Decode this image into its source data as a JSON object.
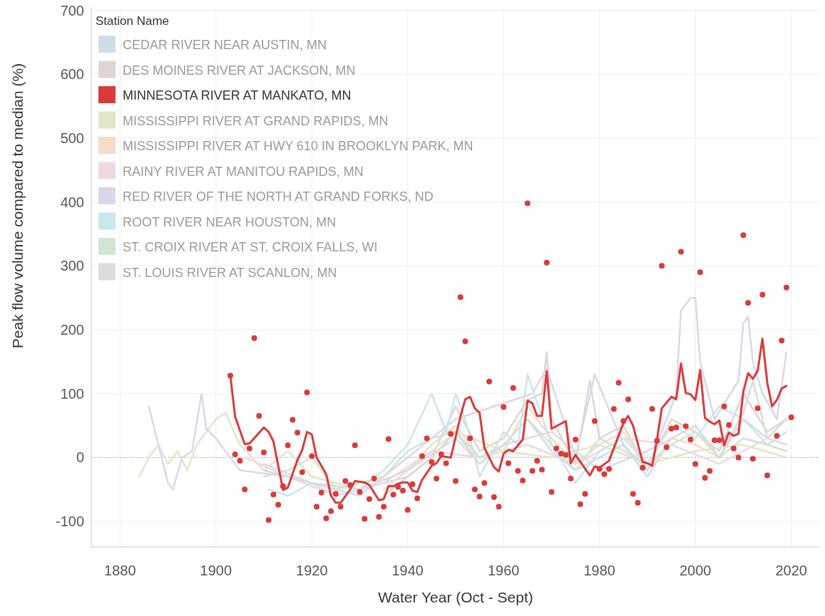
{
  "chart_data": {
    "type": "scatter",
    "xlabel": "Water Year (Oct - Sept)",
    "ylabel": "Peak flow volume compared to median (%)",
    "legend_title": "Station Name",
    "legend": "top left",
    "grid": true,
    "xlim": [
      1874,
      2026
    ],
    "ylim": [
      -140,
      705
    ],
    "xticks": [
      1880,
      1900,
      1920,
      1940,
      1960,
      1980,
      2000,
      2020
    ],
    "yticks": [
      {
        "value": -100,
        "label": "-100"
      },
      0,
      100,
      200,
      300,
      400,
      500,
      600,
      700
    ],
    "ref_lines": [
      {
        "axis": "y",
        "value": 0,
        "color": "#b0b0b0",
        "line_style": "dotted"
      }
    ],
    "series": [
      {
        "name": "CEDAR RIVER NEAR AUSTIN, MN",
        "type": "line",
        "color": "#cfdde8",
        "x": [
          1910,
          1920,
          1930,
          1940,
          1945,
          1950,
          1955,
          1960,
          1965,
          1970,
          1975,
          1980,
          1985,
          1990,
          1995,
          2000,
          2005,
          2010,
          2015,
          2019
        ],
        "values": [
          -20,
          -40,
          -50,
          -30,
          0,
          40,
          -10,
          20,
          60,
          10,
          -20,
          0,
          20,
          -30,
          30,
          50,
          0,
          60,
          30,
          20
        ]
      },
      {
        "name": "DES MOINES RIVER AT JACKSON, MN",
        "type": "line",
        "color": "#ddd6d3",
        "x": [
          1935,
          1940,
          1945,
          1950,
          1955,
          1960,
          1965,
          1968,
          1969,
          1970,
          1975,
          1978,
          1980,
          1985,
          1990,
          1995,
          2000,
          2005,
          2010,
          2015,
          2019
        ],
        "values": [
          -60,
          -30,
          0,
          80,
          10,
          30,
          90,
          100,
          165,
          60,
          -10,
          120,
          30,
          50,
          -20,
          60,
          40,
          10,
          100,
          40,
          60
        ]
      },
      {
        "name": "MINNESOTA RIVER AT MANKATO, MN",
        "marker": "circle",
        "color": "#d93b3b",
        "x": [
          1903,
          1904,
          1905,
          1906,
          1907,
          1908,
          1909,
          1910,
          1911,
          1912,
          1913,
          1914,
          1915,
          1916,
          1917,
          1918,
          1919,
          1920,
          1921,
          1922,
          1923,
          1924,
          1925,
          1926,
          1927,
          1928,
          1929,
          1930,
          1931,
          1932,
          1933,
          1934,
          1935,
          1936,
          1937,
          1938,
          1939,
          1940,
          1941,
          1942,
          1943,
          1944,
          1945,
          1946,
          1947,
          1948,
          1949,
          1950,
          1951,
          1952,
          1953,
          1954,
          1955,
          1956,
          1957,
          1958,
          1959,
          1960,
          1961,
          1962,
          1963,
          1964,
          1965,
          1966,
          1967,
          1968,
          1969,
          1970,
          1971,
          1972,
          1973,
          1974,
          1975,
          1976,
          1977,
          1979,
          1980,
          1981,
          1982,
          1983,
          1984,
          1985,
          1986,
          1987,
          1988,
          1989,
          1991,
          1992,
          1993,
          1994,
          1995,
          1996,
          1997,
          1998,
          1999,
          2000,
          2001,
          2002,
          2003,
          2004,
          2005,
          2006,
          2007,
          2008,
          2009,
          2010,
          2011,
          2012,
          2013,
          2014,
          2015,
          2017,
          2018,
          2019,
          2020
        ],
        "values": [
          128,
          5,
          -5,
          -50,
          14,
          187,
          65,
          8,
          -98,
          -58,
          -74,
          -45,
          19,
          59,
          39,
          -23,
          102,
          2,
          -77,
          -55,
          -95,
          -84,
          -57,
          -77,
          -37,
          -43,
          19,
          -54,
          -96,
          -65,
          -33,
          -93,
          -77,
          29,
          -58,
          -46,
          -52,
          -82,
          -42,
          -64,
          2,
          30,
          -7,
          -33,
          5,
          -9,
          37,
          -37,
          251,
          182,
          30,
          -50,
          -61,
          -40,
          119,
          -62,
          -77,
          79,
          -9,
          109,
          -21,
          -36,
          398,
          -21,
          -5,
          -19,
          305,
          -54,
          14,
          6,
          4,
          -33,
          28,
          -73,
          -57,
          57,
          -18,
          -26,
          -18,
          76,
          117,
          57,
          91,
          -57,
          -71,
          -16,
          76,
          26,
          300,
          16,
          45,
          47,
          322,
          49,
          28,
          -10,
          290,
          -32,
          -21,
          27,
          27,
          80,
          51,
          14,
          0,
          348,
          242,
          -2,
          77,
          255,
          -28,
          34,
          183,
          266,
          63
        ]
      },
      {
        "type": "line",
        "color": "#d93b3b",
        "x": [
          1903,
          1904,
          1906,
          1907,
          1910,
          1911,
          1912,
          1914,
          1915,
          1917,
          1918,
          1919,
          1920,
          1921,
          1923,
          1924,
          1925,
          1926,
          1928,
          1929,
          1931,
          1932,
          1934,
          1935,
          1936,
          1937,
          1938,
          1939,
          1940,
          1941,
          1942,
          1943,
          1945,
          1946,
          1947,
          1948,
          1949,
          1951,
          1952,
          1953,
          1954,
          1955,
          1956,
          1958,
          1959,
          1960,
          1961,
          1962,
          1964,
          1965,
          1966,
          1967,
          1968,
          1969,
          1970,
          1973,
          1974,
          1975,
          1978,
          1979,
          1980,
          1982,
          1985,
          1986,
          1987,
          1989,
          1990,
          1991,
          1992,
          1993,
          1995,
          1996,
          1997,
          1998,
          1999,
          2000,
          2001,
          2002,
          2003,
          2004,
          2005,
          2006,
          2007,
          2008,
          2009,
          2010,
          2011,
          2012,
          2013,
          2014,
          2015,
          2016,
          2017,
          2018,
          2019
        ],
        "values": [
          128,
          64,
          21,
          22,
          47,
          40,
          25,
          -51,
          -47,
          -4,
          12,
          40,
          36,
          0,
          -26,
          -60,
          -71,
          -71,
          -50,
          -37,
          -39,
          -43,
          -67,
          -65,
          -45,
          -45,
          -41,
          -39,
          -39,
          -52,
          -54,
          -35,
          -13,
          -9,
          2,
          1,
          0,
          64,
          91,
          95,
          77,
          70,
          15,
          -15,
          -22,
          6,
          12,
          10,
          28,
          89,
          85,
          65,
          65,
          135,
          45,
          57,
          -9,
          4,
          -28,
          -14,
          -16,
          -5,
          54,
          65,
          50,
          -7,
          -9,
          -13,
          28,
          77,
          95,
          91,
          147,
          101,
          99,
          90,
          137,
          62,
          56,
          52,
          58,
          19,
          39,
          34,
          37,
          103,
          132,
          123,
          136,
          186,
          117,
          80,
          90,
          108,
          112
        ]
      },
      {
        "name": "MISSISSIPPI RIVER AT GRAND RAPIDS, MN",
        "type": "line",
        "color": "#e3e6c6",
        "x": [
          1884,
          1886,
          1888,
          1890,
          1892,
          1894,
          1896,
          1898,
          1900,
          1902,
          1905,
          1910,
          1915,
          1920,
          1930,
          1940,
          1950,
          1960,
          1970,
          1980,
          1990,
          2000,
          2010,
          2019
        ],
        "values": [
          -30,
          0,
          20,
          -10,
          10,
          -20,
          20,
          40,
          60,
          70,
          20,
          -20,
          10,
          -30,
          -50,
          -20,
          40,
          10,
          0,
          20,
          -10,
          10,
          20,
          0
        ]
      },
      {
        "name": "MISSISSIPPI RIVER AT HWY 610 IN BROOKLYN PARK, MN",
        "type": "line",
        "color": "#f3dcc8",
        "x": [
          1935,
          1940,
          1945,
          1950,
          1955,
          1960,
          1965,
          1970,
          1975,
          1980,
          1985,
          1990,
          1995,
          2000,
          2005,
          2010,
          2015,
          2019
        ],
        "values": [
          -50,
          -20,
          20,
          50,
          0,
          10,
          80,
          30,
          -10,
          20,
          40,
          -20,
          30,
          20,
          0,
          30,
          20,
          10
        ]
      },
      {
        "name": "RAINY RIVER AT MANITOU RAPIDS, MN",
        "type": "line",
        "color": "#efd8e4",
        "x": [
          1906,
          1915,
          1925,
          1935,
          1945,
          1955,
          1965,
          1975,
          1985,
          1995,
          2005,
          2015,
          2019
        ],
        "values": [
          0,
          -30,
          -60,
          -40,
          10,
          0,
          20,
          -10,
          30,
          20,
          -10,
          30,
          20
        ]
      },
      {
        "name": "RED RIVER OF THE NORTH AT GRAND FORKS, ND",
        "type": "line",
        "color": "#ddd5ea",
        "x": [
          1886,
          1888,
          1890,
          1891,
          1893,
          1895,
          1897,
          1898,
          1900,
          1905,
          1915,
          1930,
          1950,
          1966,
          1969,
          1975,
          1979,
          1985,
          1990,
          1996,
          1997,
          1999,
          2000,
          2001,
          2004,
          2009,
          2010,
          2011,
          2012,
          2014,
          2017,
          2019
        ],
        "values": [
          80,
          20,
          -40,
          -50,
          0,
          10,
          100,
          45,
          30,
          -20,
          -30,
          -60,
          60,
          100,
          140,
          0,
          130,
          20,
          -20,
          100,
          230,
          250,
          250,
          150,
          60,
          120,
          210,
          220,
          150,
          100,
          60,
          165
        ]
      },
      {
        "name": "ROOT RIVER NEAR HOUSTON, MN",
        "type": "line",
        "color": "#cbe6ec",
        "x": [
          1911,
          1915,
          1920,
          1925,
          1930,
          1935,
          1940,
          1945,
          1948,
          1950,
          1952,
          1955,
          1960,
          1963,
          1965,
          1970,
          1975,
          1980,
          1985,
          1990,
          1995,
          2000,
          2005,
          2010,
          2015,
          2019
        ],
        "values": [
          -50,
          -60,
          -40,
          -60,
          -50,
          -20,
          20,
          100,
          40,
          100,
          60,
          -30,
          40,
          20,
          130,
          20,
          -40,
          10,
          30,
          -10,
          50,
          30,
          80,
          60,
          20,
          40
        ]
      },
      {
        "name": "ST. CROIX RIVER AT ST. CROIX FALLS, WI",
        "type": "line",
        "color": "#cfe6d3",
        "x": [
          1910,
          1915,
          1920,
          1925,
          1930,
          1935,
          1940,
          1945,
          1950,
          1955,
          1960,
          1965,
          1970,
          1975,
          1980,
          1985,
          1990,
          1995,
          2000,
          2005,
          2010,
          2015,
          2019
        ],
        "values": [
          -30,
          -20,
          0,
          -50,
          -40,
          -30,
          10,
          30,
          40,
          0,
          20,
          60,
          20,
          -20,
          30,
          10,
          -10,
          20,
          40,
          0,
          30,
          20,
          10
        ]
      },
      {
        "name": "ST. LOUIS RIVER AT SCANLON, MN",
        "type": "line",
        "color": "#dcdcdc",
        "x": [
          1910,
          1920,
          1930,
          1940,
          1950,
          1955,
          1960,
          1970,
          1980,
          1990,
          2000,
          2005,
          2010,
          2012,
          2015,
          2019
        ],
        "values": [
          -10,
          -40,
          -50,
          -20,
          30,
          -10,
          20,
          40,
          -20,
          10,
          50,
          0,
          70,
          120,
          30,
          60
        ]
      }
    ]
  }
}
